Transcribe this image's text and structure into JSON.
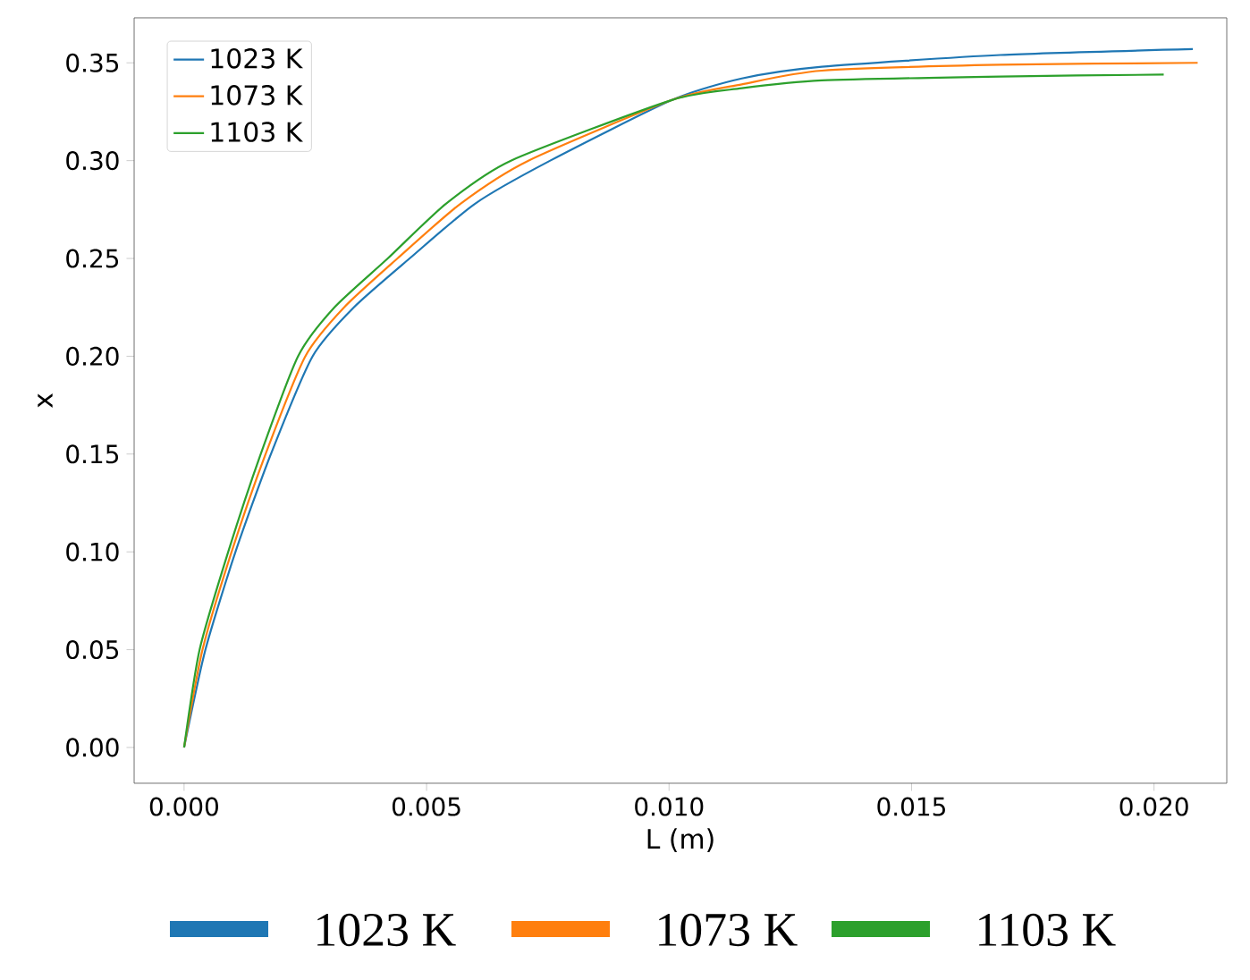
{
  "chart_data": {
    "type": "line",
    "xlabel": "L (m)",
    "ylabel": "x",
    "xlim": [
      -0.00103,
      0.0215
    ],
    "ylim": [
      -0.0183,
      0.373
    ],
    "xticks": [
      {
        "value": 0,
        "label": "0.000"
      },
      {
        "value": 0.005,
        "label": "0.005"
      },
      {
        "value": 0.01,
        "label": "0.010"
      },
      {
        "value": 0.015,
        "label": "0.015"
      },
      {
        "value": 0.02,
        "label": "0.020"
      }
    ],
    "yticks": [
      {
        "value": 0,
        "label": "0.00"
      },
      {
        "value": 0.05,
        "label": "0.05"
      },
      {
        "value": 0.1,
        "label": "0.10"
      },
      {
        "value": 0.15,
        "label": "0.15"
      },
      {
        "value": 0.2,
        "label": "0.20"
      },
      {
        "value": 0.25,
        "label": "0.25"
      },
      {
        "value": 0.3,
        "label": "0.30"
      },
      {
        "value": 0.35,
        "label": "0.35"
      }
    ],
    "series": [
      {
        "name": "1023 K",
        "color": "#1f77b4",
        "x": [
          0,
          0.00044,
          0.00106,
          0.00179,
          0.00265,
          0.0035,
          0.00465,
          0.006,
          0.00755,
          0.01006,
          0.0115,
          0.01315,
          0.01683,
          0.0208
        ],
        "values": [
          0,
          0.05,
          0.1,
          0.15,
          0.2,
          0.225,
          0.25,
          0.278,
          0.3,
          0.331,
          0.342,
          0.348,
          0.354,
          0.357
        ]
      },
      {
        "name": "1073 K",
        "color": "#ff7f0e",
        "x": [
          0,
          0.00038,
          0.00098,
          0.00168,
          0.0025,
          0.0033,
          0.0044,
          0.0057,
          0.0071,
          0.01006,
          0.0115,
          0.01315,
          0.01683,
          0.0209
        ],
        "values": [
          0,
          0.05,
          0.1,
          0.15,
          0.2,
          0.225,
          0.25,
          0.278,
          0.3,
          0.331,
          0.339,
          0.346,
          0.349,
          0.35
        ]
      },
      {
        "name": "1103 K",
        "color": "#2ca02c",
        "x": [
          0,
          0.00032,
          0.00091,
          0.00158,
          0.00235,
          0.0031,
          0.0042,
          0.0054,
          0.00674,
          0.01006,
          0.0115,
          0.01315,
          0.01683,
          0.0202
        ],
        "values": [
          0,
          0.05,
          0.1,
          0.15,
          0.2,
          0.225,
          0.25,
          0.278,
          0.3,
          0.331,
          0.337,
          0.341,
          0.343,
          0.344
        ]
      }
    ],
    "legend": "top left",
    "grid": false,
    "annotations": [
      "1023 K",
      "1073 K",
      "1103 K"
    ]
  }
}
